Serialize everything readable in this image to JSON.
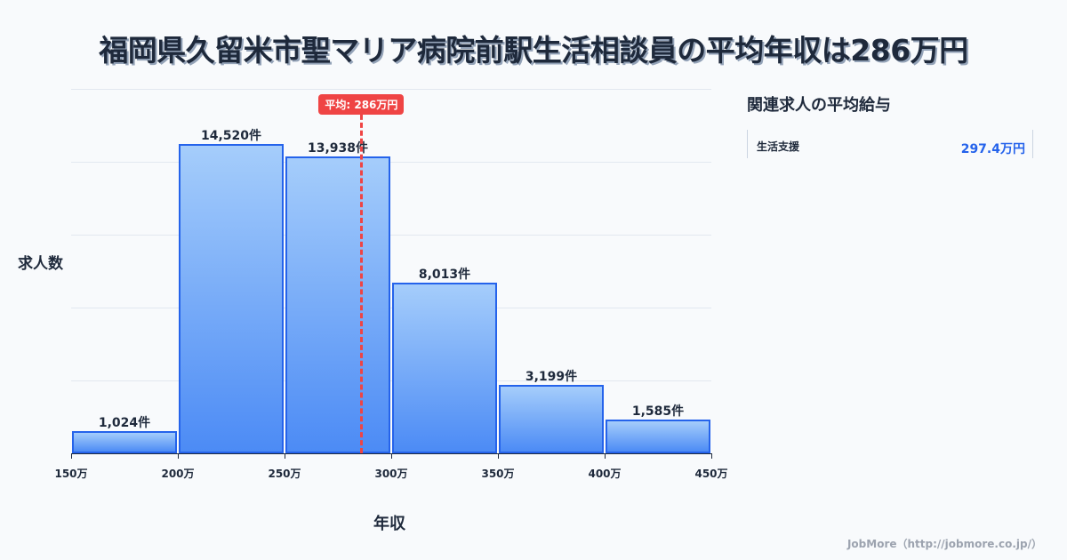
{
  "title": "福岡県久留米市聖マリア病院前駅生活相談員の平均年収は286万円",
  "chart_data": {
    "type": "bar",
    "title": "福岡県久留米市聖マリア病院前駅生活相談員の平均年収は286万円",
    "xlabel": "年収",
    "ylabel": "求人数",
    "bins": [
      [
        150,
        200
      ],
      [
        200,
        250
      ],
      [
        250,
        300
      ],
      [
        300,
        350
      ],
      [
        350,
        400
      ],
      [
        400,
        450
      ]
    ],
    "values": [
      1024,
      14520,
      13938,
      8013,
      3199,
      1585
    ],
    "value_labels": [
      "1,024件",
      "14,520件",
      "13,938件",
      "8,013件",
      "3,199件",
      "1,585件"
    ],
    "x_ticks": [
      "150万",
      "200万",
      "250万",
      "300万",
      "350万",
      "400万",
      "450万"
    ],
    "xlim": [
      150,
      450
    ],
    "ylim": [
      0,
      17100
    ],
    "grid": true,
    "mean": {
      "value": 286,
      "label": "平均: 286万円",
      "color": "#ef4444"
    },
    "bar_color": "#4c8bf5",
    "bar_border_color": "#2563eb"
  },
  "side_panel": {
    "title": "関連求人の平均給与",
    "items": [
      {
        "name": "生活支援",
        "value": "297.4万円"
      }
    ]
  },
  "footer": "JobMore（http://jobmore.co.jp/）"
}
